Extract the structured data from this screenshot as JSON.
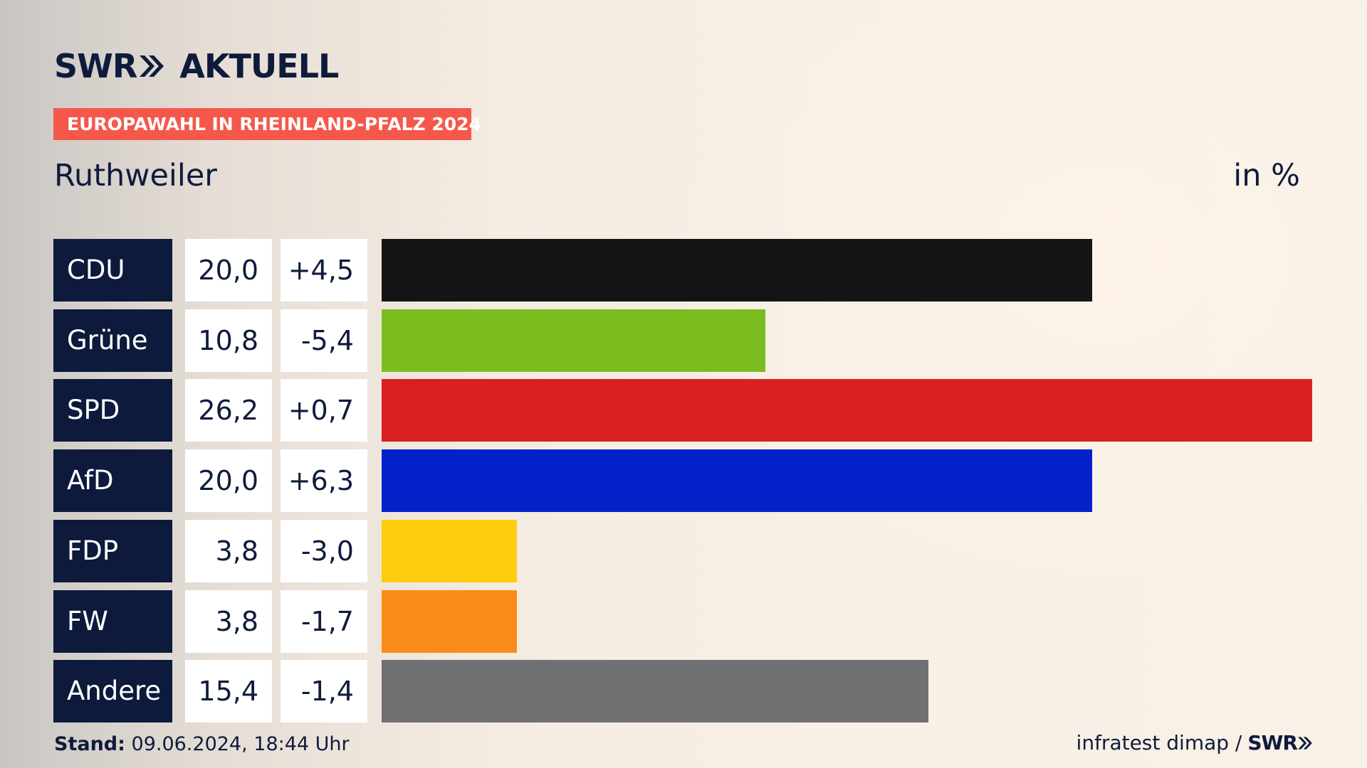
{
  "header": {
    "logo_text": "SWR",
    "logo_suffix": "AKTUELL",
    "banner": "EUROPAWAHL IN RHEINLAND-PFALZ 2024",
    "region": "Ruthweiler",
    "unit": "in %"
  },
  "chart_data": {
    "type": "bar",
    "title": "Ruthweiler",
    "categories": [
      "CDU",
      "Grüne",
      "SPD",
      "AfD",
      "FDP",
      "FW",
      "Andere"
    ],
    "values": [
      20.0,
      10.8,
      26.2,
      20.0,
      3.8,
      3.8,
      15.4
    ],
    "value_labels": [
      "20,0",
      "10,8",
      "26,2",
      "20,0",
      "3,8",
      "3,8",
      "15,4"
    ],
    "diff_labels": [
      "+4,5",
      "-5,4",
      "+0,7",
      "+6,3",
      "-3,0",
      "-1,7",
      "-1,4"
    ],
    "diffs": [
      4.5,
      -5.4,
      0.7,
      6.3,
      -3.0,
      -1.7,
      -1.4
    ],
    "colors": [
      "#141414",
      "#7bbd1e",
      "#d82020",
      "#0321c8",
      "#fdcc0c",
      "#fa8c19",
      "#707173"
    ],
    "unit": "in %",
    "orientation": "horizontal",
    "xlim": [
      0,
      26.2
    ]
  },
  "footer": {
    "stand_label": "Stand:",
    "stand_value": "09.06.2024, 18:44 Uhr",
    "source": "infratest dimap /",
    "source_logo": "SWR"
  }
}
